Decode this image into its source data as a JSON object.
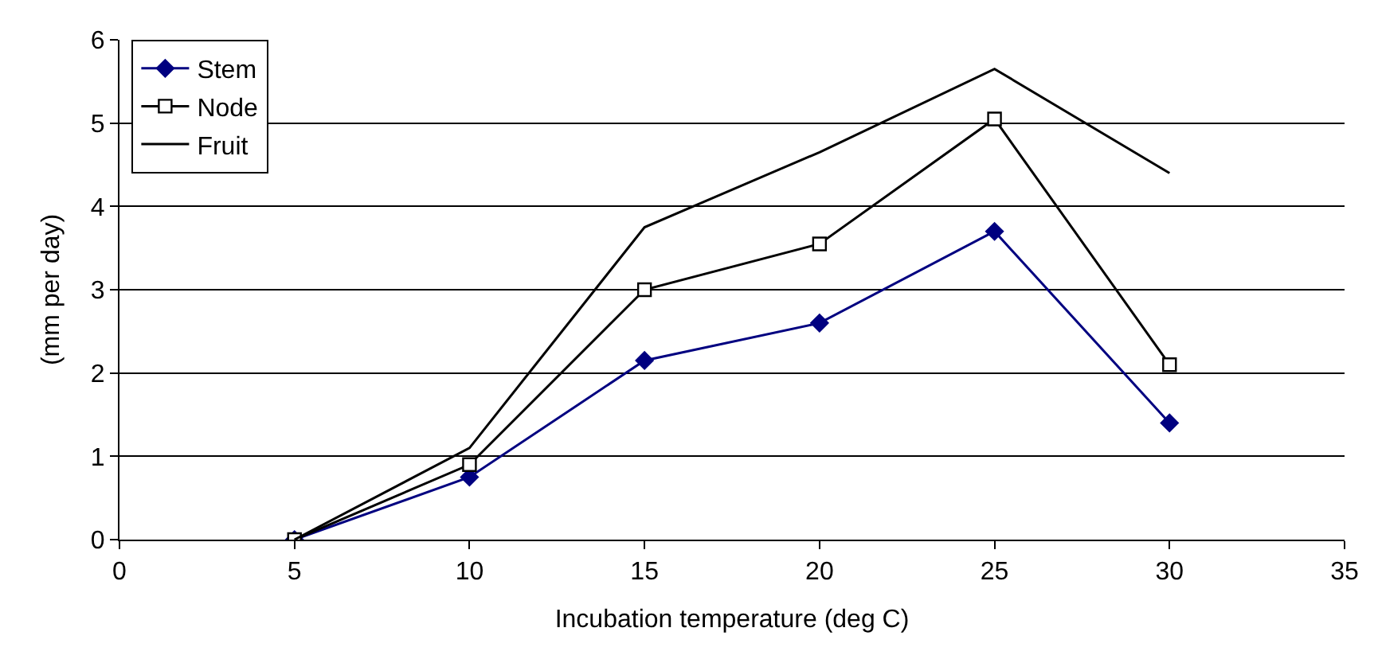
{
  "chart_data": {
    "type": "line",
    "xlabel": "Incubation temperature (deg C)",
    "ylabel": "(mm per day)",
    "x": [
      5,
      10,
      15,
      20,
      25,
      30
    ],
    "series": [
      {
        "name": "Stem",
        "color": "#000080",
        "marker": "diamond",
        "values": [
          0,
          0.75,
          2.15,
          2.6,
          3.7,
          1.4
        ]
      },
      {
        "name": "Node",
        "color": "#000000",
        "marker": "square",
        "values": [
          0,
          0.9,
          3.0,
          3.55,
          5.05,
          2.1
        ]
      },
      {
        "name": "Fruit",
        "color": "#000000",
        "marker": "none",
        "values": [
          0,
          1.1,
          3.75,
          4.65,
          5.65,
          4.4
        ]
      }
    ],
    "xlim": [
      0,
      35
    ],
    "xticks": [
      0,
      5,
      10,
      15,
      20,
      25,
      30,
      35
    ],
    "ylim": [
      0,
      6
    ],
    "yticks": [
      0,
      1,
      2,
      3,
      4,
      5,
      6
    ],
    "grid": "y",
    "legend": "top left",
    "line_style": "solid"
  }
}
